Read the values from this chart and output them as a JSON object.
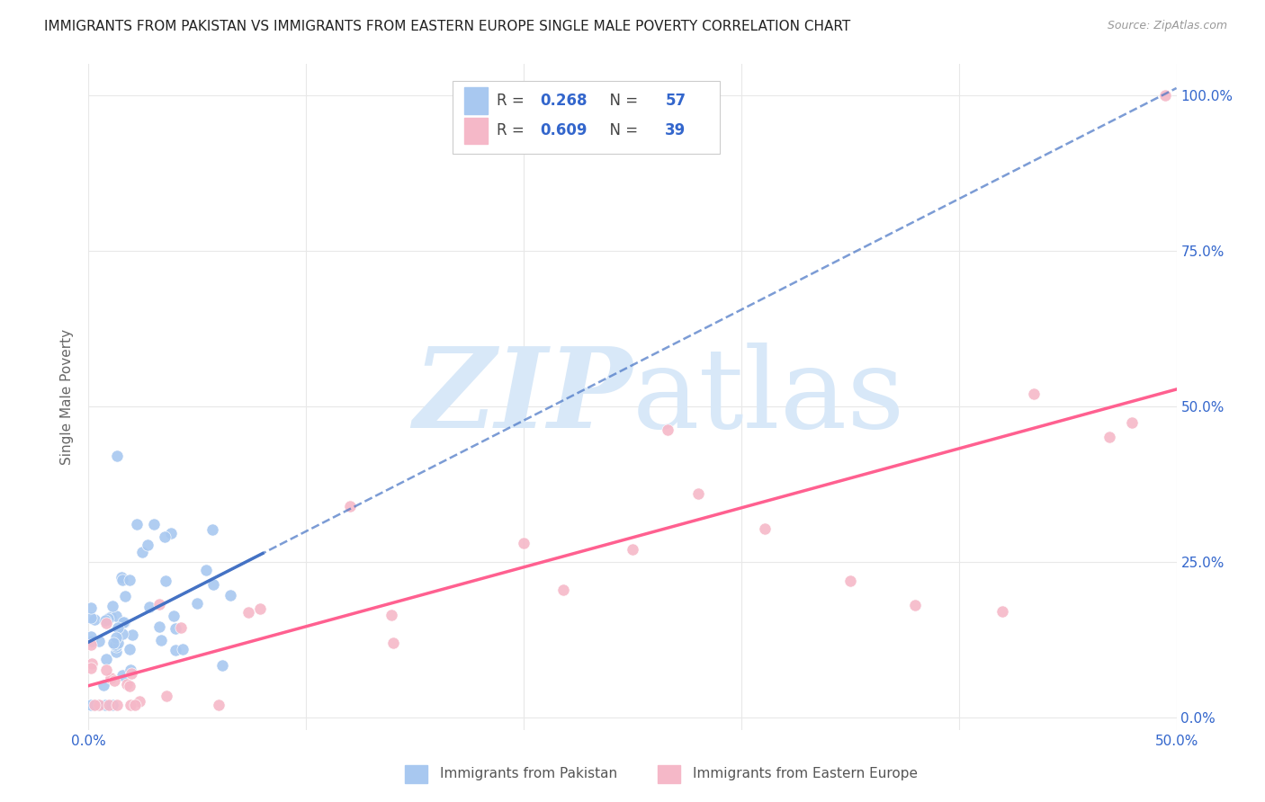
{
  "title": "IMMIGRANTS FROM PAKISTAN VS IMMIGRANTS FROM EASTERN EUROPE SINGLE MALE POVERTY CORRELATION CHART",
  "source": "Source: ZipAtlas.com",
  "ylabel": "Single Male Poverty",
  "xlim": [
    0.0,
    0.5
  ],
  "ylim": [
    -0.02,
    1.05
  ],
  "plot_ylim": [
    0.0,
    1.0
  ],
  "xticks": [
    0.0,
    0.1,
    0.2,
    0.3,
    0.4,
    0.5
  ],
  "xtick_labels": [
    "0.0%",
    "",
    "",
    "",
    "",
    "50.0%"
  ],
  "ytick_vals_right": [
    0.0,
    0.25,
    0.5,
    0.75,
    1.0
  ],
  "ytick_labels_right": [
    "0.0%",
    "25.0%",
    "50.0%",
    "75.0%",
    "100.0%"
  ],
  "pakistan_R": 0.268,
  "pakistan_N": 57,
  "eastern_europe_R": 0.609,
  "eastern_europe_N": 39,
  "pakistan_color": "#A8C8F0",
  "eastern_europe_color": "#F5B8C8",
  "pakistan_line_color": "#4472C4",
  "eastern_europe_line_color": "#FF6090",
  "watermark_zip": "ZIP",
  "watermark_atlas": "atlas",
  "watermark_color": "#D8E8F8",
  "background_color": "#FFFFFF",
  "grid_color": "#E8E8E8",
  "legend_R_color": "#333333",
  "legend_val_color": "#3366CC",
  "bottom_legend_color": "#555555"
}
